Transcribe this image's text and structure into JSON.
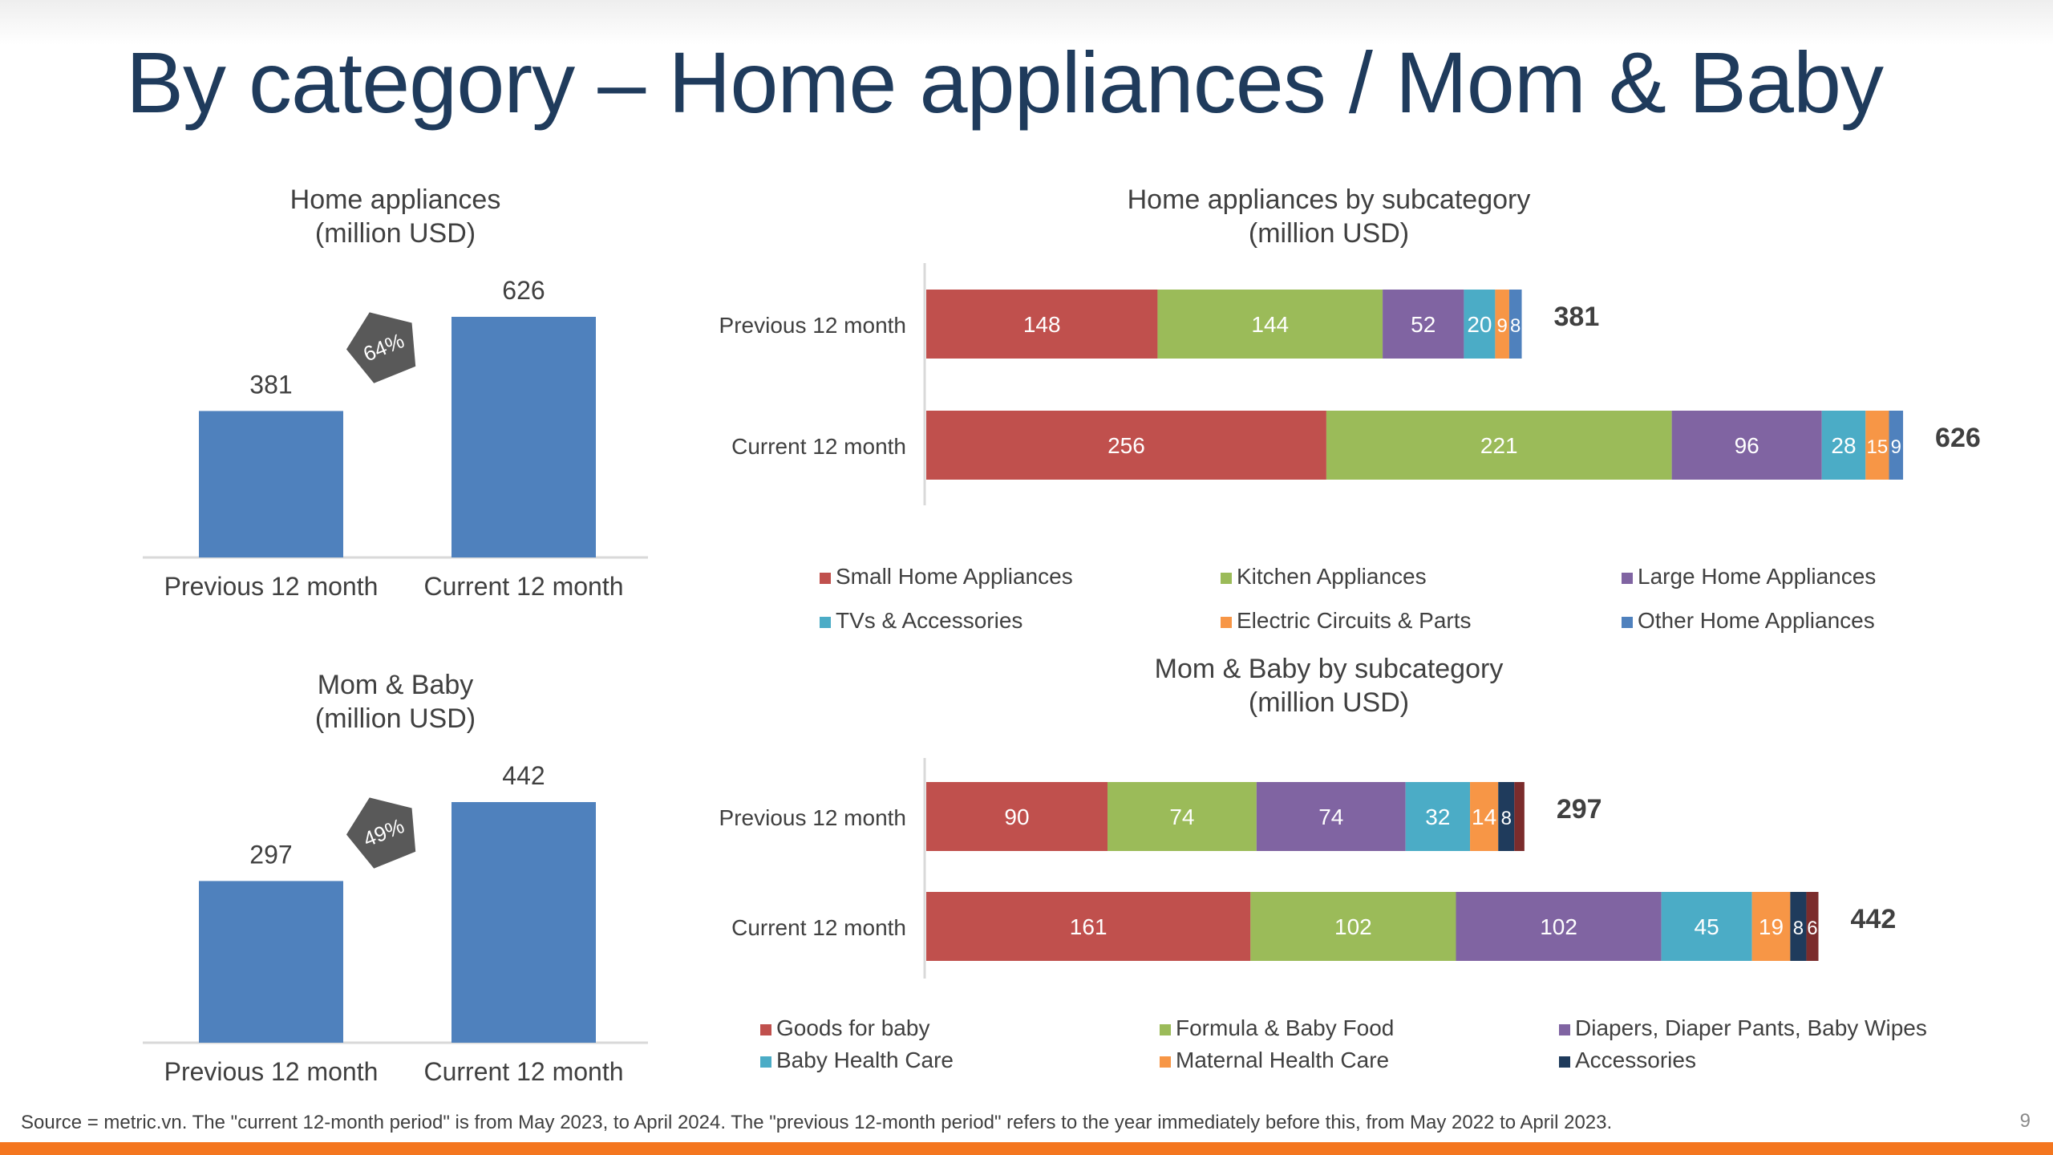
{
  "title": "By category – Home appliances / Mom & Baby",
  "colors": {
    "title": "#1f3b5c",
    "bar": "#4f81bd",
    "badge": "#595959",
    "text": "#404040",
    "accent_bar": "#f4761f",
    "home_segments": [
      "#c0504d",
      "#9bbb59",
      "#8064a2",
      "#4bacc6",
      "#f79646",
      "#4f81bd"
    ],
    "baby_segments": [
      "#c0504d",
      "#9bbb59",
      "#8064a2",
      "#4bacc6",
      "#f79646",
      "#1f3b5c",
      "#7b2c2c"
    ]
  },
  "chart_data": [
    {
      "id": "home-total",
      "type": "bar",
      "title_lines": [
        "Home appliances",
        "(million USD)"
      ],
      "categories": [
        "Previous 12 month",
        "Current 12 month"
      ],
      "values": [
        381,
        626
      ],
      "growth_label": "64%",
      "ylim": [
        0,
        700
      ]
    },
    {
      "id": "home-sub",
      "type": "bar",
      "orientation": "horizontal-stacked",
      "title_lines": [
        "Home appliances by subcategory",
        "(million USD)"
      ],
      "categories": [
        "Previous 12 month",
        "Current 12 month"
      ],
      "series": [
        {
          "name": "Small Home Appliances",
          "values": [
            148,
            256
          ]
        },
        {
          "name": "Kitchen Appliances",
          "values": [
            144,
            221
          ]
        },
        {
          "name": "Large Home Appliances",
          "values": [
            52,
            96
          ]
        },
        {
          "name": "TVs & Accessories",
          "values": [
            20,
            28
          ]
        },
        {
          "name": "Electric Circuits & Parts",
          "values": [
            9,
            15
          ]
        },
        {
          "name": "Other Home Appliances",
          "values": [
            8,
            9
          ]
        }
      ],
      "totals": [
        381,
        626
      ],
      "xlim": [
        0,
        626
      ]
    },
    {
      "id": "baby-total",
      "type": "bar",
      "title_lines": [
        "Mom & Baby",
        "(million USD)"
      ],
      "categories": [
        "Previous 12 month",
        "Current 12 month"
      ],
      "values": [
        297,
        442
      ],
      "growth_label": "49%",
      "ylim": [
        0,
        500
      ]
    },
    {
      "id": "baby-sub",
      "type": "bar",
      "orientation": "horizontal-stacked",
      "title_lines": [
        "Mom & Baby by subcategory",
        "(million USD)"
      ],
      "categories": [
        "Previous 12 month",
        "Current 12 month"
      ],
      "series": [
        {
          "name": "Goods for baby",
          "values": [
            90,
            161
          ]
        },
        {
          "name": "Formula & Baby Food",
          "values": [
            74,
            102
          ]
        },
        {
          "name": "Diapers, Diaper Pants, Baby Wipes",
          "values": [
            74,
            102
          ]
        },
        {
          "name": "Baby Health Care",
          "values": [
            32,
            45
          ]
        },
        {
          "name": "Maternal Health Care",
          "values": [
            14,
            19
          ]
        },
        {
          "name": "Accessories",
          "values": [
            8,
            8
          ]
        },
        {
          "name": "",
          "values": [
            5,
            6
          ]
        }
      ],
      "legend_series": [
        "Goods for baby",
        "Formula & Baby Food",
        "Diapers, Diaper Pants, Baby Wipes",
        "Baby Health Care",
        "Maternal Health Care",
        "Accessories"
      ],
      "totals": [
        297,
        442
      ],
      "xlim": [
        0,
        442
      ]
    }
  ],
  "footer": {
    "source": "Source = metric.vn. The \"current 12-month period\" is from May 2023, to April 2024. The \"previous 12-month period\" refers to the year immediately before this, from May 2022 to April 2023.",
    "page_number": "9"
  }
}
